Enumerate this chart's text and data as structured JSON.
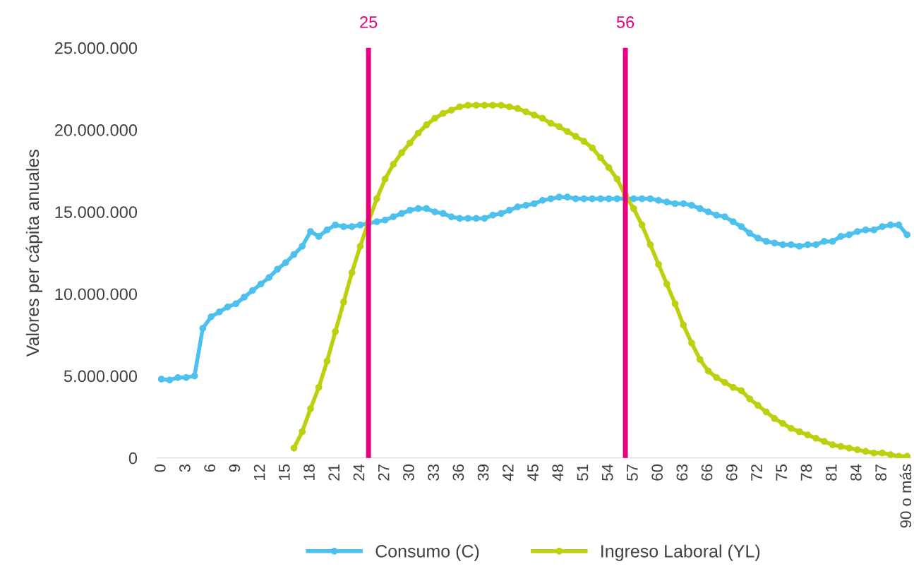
{
  "chart_data": {
    "type": "line",
    "ylabel": "Valores per cápita anuales",
    "x": [
      0,
      1,
      2,
      3,
      4,
      5,
      6,
      7,
      8,
      9,
      10,
      11,
      12,
      13,
      14,
      15,
      16,
      17,
      18,
      19,
      20,
      21,
      22,
      23,
      24,
      25,
      26,
      27,
      28,
      29,
      30,
      31,
      32,
      33,
      34,
      35,
      36,
      37,
      38,
      39,
      40,
      41,
      42,
      43,
      44,
      45,
      46,
      47,
      48,
      49,
      50,
      51,
      52,
      53,
      54,
      55,
      56,
      57,
      58,
      59,
      60,
      61,
      62,
      63,
      64,
      65,
      66,
      67,
      68,
      69,
      70,
      71,
      72,
      73,
      74,
      75,
      76,
      77,
      78,
      79,
      80,
      81,
      82,
      83,
      84,
      85,
      86,
      87,
      88,
      89,
      90
    ],
    "xlim": [
      -0.5,
      90.5
    ],
    "xticks": [
      0,
      3,
      6,
      9,
      12,
      15,
      18,
      21,
      24,
      27,
      30,
      33,
      36,
      39,
      42,
      45,
      48,
      51,
      54,
      57,
      60,
      63,
      66,
      69,
      72,
      75,
      78,
      81,
      84,
      87,
      {
        "value": 90,
        "label": "90 o más"
      }
    ],
    "series": [
      {
        "name": "Consumo (C)",
        "color": "#4dc0ee",
        "values": [
          4800000,
          4750000,
          4900000,
          4900000,
          5000000,
          7900000,
          8600000,
          8900000,
          9200000,
          9400000,
          9800000,
          10200000,
          10600000,
          11000000,
          11500000,
          11900000,
          12400000,
          12900000,
          13800000,
          13500000,
          13900000,
          14200000,
          14100000,
          14100000,
          14200000,
          14300000,
          14400000,
          14500000,
          14700000,
          14900000,
          15100000,
          15200000,
          15200000,
          15000000,
          14900000,
          14700000,
          14600000,
          14600000,
          14600000,
          14600000,
          14800000,
          14900000,
          15100000,
          15300000,
          15400000,
          15500000,
          15700000,
          15800000,
          15900000,
          15900000,
          15800000,
          15800000,
          15800000,
          15800000,
          15800000,
          15800000,
          15800000,
          15800000,
          15800000,
          15800000,
          15700000,
          15600000,
          15500000,
          15500000,
          15400000,
          15200000,
          15000000,
          14800000,
          14700000,
          14400000,
          14100000,
          13700000,
          13400000,
          13200000,
          13100000,
          13000000,
          13000000,
          12900000,
          13000000,
          13000000,
          13200000,
          13200000,
          13500000,
          13600000,
          13800000,
          13900000,
          13900000,
          14100000,
          14200000,
          14200000,
          13600000
        ]
      },
      {
        "name": "Ingreso Laboral (YL)",
        "color": "#bdd00d",
        "values": [
          null,
          null,
          null,
          null,
          null,
          null,
          null,
          null,
          null,
          null,
          null,
          null,
          null,
          null,
          null,
          null,
          600000,
          1600000,
          3000000,
          4300000,
          5900000,
          7700000,
          9500000,
          11300000,
          12900000,
          14400000,
          15800000,
          17000000,
          17900000,
          18600000,
          19200000,
          19800000,
          20300000,
          20700000,
          21000000,
          21200000,
          21400000,
          21500000,
          21500000,
          21500000,
          21500000,
          21500000,
          21400000,
          21300000,
          21100000,
          20900000,
          20700000,
          20400000,
          20200000,
          19900000,
          19600000,
          19300000,
          18900000,
          18300000,
          17700000,
          17000000,
          16000000,
          15200000,
          14200000,
          13000000,
          11800000,
          10600000,
          9400000,
          8100000,
          7000000,
          6000000,
          5300000,
          4900000,
          4600000,
          4300000,
          4100000,
          3600000,
          3200000,
          2800000,
          2400000,
          2100000,
          1800000,
          1600000,
          1400000,
          1200000,
          1000000,
          800000,
          700000,
          600000,
          500000,
          400000,
          300000,
          300000,
          200000,
          100000,
          100000
        ]
      }
    ],
    "ylim": [
      0,
      25000000
    ],
    "yticks": [
      0,
      {
        "value": 5000000,
        "label": "5.000.000"
      },
      {
        "value": 10000000,
        "label": "10.000.000"
      },
      {
        "value": 15000000,
        "label": "15.000.000"
      },
      {
        "value": 20000000,
        "label": "20.000.000"
      },
      {
        "value": 25000000,
        "label": "25.000.000"
      }
    ],
    "ref_lines": [
      {
        "axis": "x",
        "value": 25,
        "label": "25",
        "color": "#e6007e"
      },
      {
        "axis": "x",
        "value": 56,
        "label": "56",
        "color": "#e6007e"
      }
    ],
    "legend": "bottom",
    "marker": "circle",
    "line_style": "solid"
  }
}
